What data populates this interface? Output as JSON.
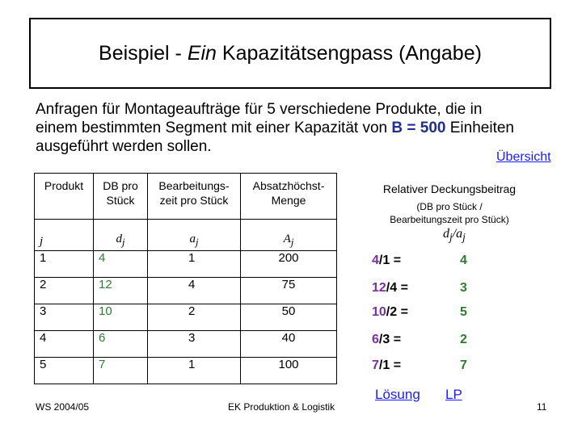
{
  "title": {
    "prefix": "Beispiel - ",
    "italic": "Ein",
    "suffix": " Kapazitätsengpass (Angabe)"
  },
  "intro": {
    "line1": "Anfragen für Montageaufträge für 5 verschiedene Produkte, die in",
    "line2a": "einem bestimmten Segment mit einer Kapazität von ",
    "capacity": "B = 500",
    "line2b": " Einheiten",
    "line3": "ausgeführt werden sollen."
  },
  "link_overview": "Übersicht",
  "table": {
    "headers": [
      "Produkt",
      "DB pro Stück",
      "Bearbeitungs-zeit pro Stück",
      "Absatzhöchst-Menge"
    ],
    "symbols": [
      "j",
      "dj",
      "aj",
      "Aj"
    ],
    "rows": [
      {
        "j": "1",
        "d": "4",
        "a": "1",
        "A": "200"
      },
      {
        "j": "2",
        "d": "12",
        "a": "4",
        "A": "75"
      },
      {
        "j": "3",
        "d": "10",
        "a": "2",
        "A": "50"
      },
      {
        "j": "4",
        "d": "6",
        "a": "3",
        "A": "40"
      },
      {
        "j": "5",
        "d": "7",
        "a": "1",
        "A": "100"
      }
    ]
  },
  "relative": {
    "heading": "Relativer Deckungsbeitrag",
    "subheading": "(DB pro Stück / Bearbeitungszeit pro Stück)",
    "symbol": "dj/aj",
    "rows": [
      {
        "num": "4",
        "den": "1",
        "res": "4"
      },
      {
        "num": "12",
        "den": "4",
        "res": "3"
      },
      {
        "num": "10",
        "den": "2",
        "res": "5"
      },
      {
        "num": "6",
        "den": "3",
        "res": "2"
      },
      {
        "num": "7",
        "den": "1",
        "res": "7"
      }
    ]
  },
  "link_solution": "Lösung",
  "link_lp": "LP",
  "footer": {
    "semester": "WS 2004/05",
    "course": "EK Produktion & Logistik",
    "page": "11"
  },
  "colors": {
    "green": "#2e7d2e",
    "purple": "#7b2fa3",
    "highlight": "#1f2f8f",
    "link": "#1a1aff"
  }
}
